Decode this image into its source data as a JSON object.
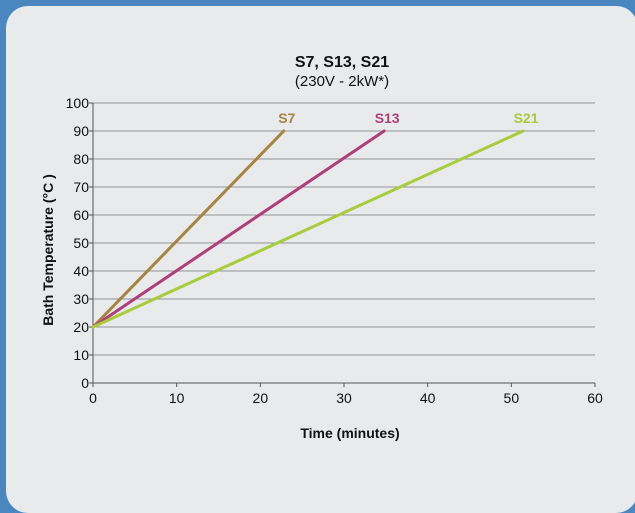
{
  "chart_data": {
    "type": "line",
    "title": "S7, S13, S21",
    "subtitle": "(230V - 2kW*)",
    "xlabel": "Time (minutes)",
    "ylabel": "Bath Temperature (°C )",
    "xlim": [
      0,
      60
    ],
    "ylim": [
      0,
      100
    ],
    "xticks": [
      0,
      10,
      20,
      30,
      40,
      50,
      60
    ],
    "yticks": [
      0,
      10,
      20,
      30,
      40,
      50,
      60,
      70,
      80,
      90,
      100
    ],
    "grid": "horizontal",
    "series": [
      {
        "name": "S7",
        "color": "#a78444",
        "x": [
          0,
          22.8
        ],
        "y": [
          20,
          90
        ]
      },
      {
        "name": "S13",
        "color": "#ae3f79",
        "x": [
          0,
          34.8
        ],
        "y": [
          20,
          90
        ]
      },
      {
        "name": "S21",
        "color": "#a9cb3c",
        "x": [
          0,
          51.4
        ],
        "y": [
          20,
          90
        ]
      }
    ]
  }
}
